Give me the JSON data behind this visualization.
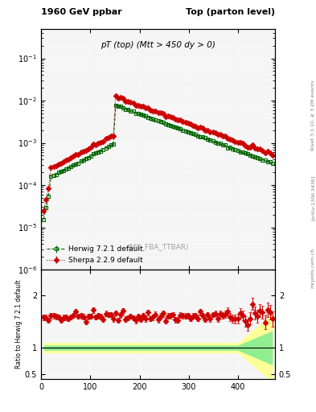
{
  "title_left": "1960 GeV ppbar",
  "title_right": "Top (parton level)",
  "main_title": "pT (top) (Mtt > 450 dy > 0)",
  "watermark": "(MC_FBA_TTBAR)",
  "right_label": "Rivet 3.1.10, ≥ 3.2M events",
  "arxiv_label": "[arXiv:1306.3436]",
  "mcplots_label": "mcplots.cern.ch",
  "ylabel_ratio": "Ratio to Herwig 7.2.1 default",
  "ylim_main": [
    1e-06,
    0.5
  ],
  "ylim_ratio": [
    0.4,
    2.5
  ],
  "xlim": [
    0,
    475
  ],
  "herwig_color": "#006600",
  "sherpa_color": "#cc0000",
  "herwig_label": "Herwig 7.2.1 default",
  "sherpa_label": "Sherpa 2.2.9 default",
  "bg_color": "#f5f5f5",
  "band_green": "#90ee90",
  "band_yellow": "#ffff99"
}
